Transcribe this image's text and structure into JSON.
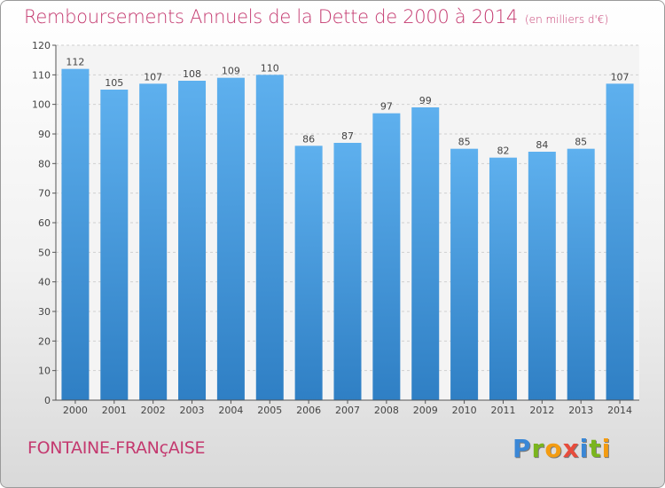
{
  "chart_data": {
    "type": "bar",
    "title": "Remboursements Annuels de la Dette de 2000 à 2014",
    "subtitle": "(en milliers d'€)",
    "categories": [
      "2000",
      "2001",
      "2002",
      "2003",
      "2004",
      "2005",
      "2006",
      "2007",
      "2008",
      "2009",
      "2010",
      "2011",
      "2012",
      "2013",
      "2014"
    ],
    "values": [
      112,
      105,
      107,
      108,
      109,
      110,
      86,
      87,
      97,
      99,
      85,
      82,
      84,
      85,
      107
    ],
    "ylim": [
      0,
      120
    ],
    "yticks": [
      0,
      10,
      20,
      30,
      40,
      50,
      60,
      70,
      80,
      90,
      100,
      110,
      120
    ],
    "grid": true,
    "bar_color": "#4a9de0"
  },
  "commune": "FONTAINE-FRANçAISE",
  "logo": {
    "letters": [
      "P",
      "r",
      "o",
      "x",
      "i",
      "t",
      "i"
    ],
    "colors": [
      "#3a87d6",
      "#7ab51d",
      "#f39c12",
      "#e74c3c",
      "#3a87d6",
      "#7ab51d",
      "#f39c12"
    ]
  }
}
